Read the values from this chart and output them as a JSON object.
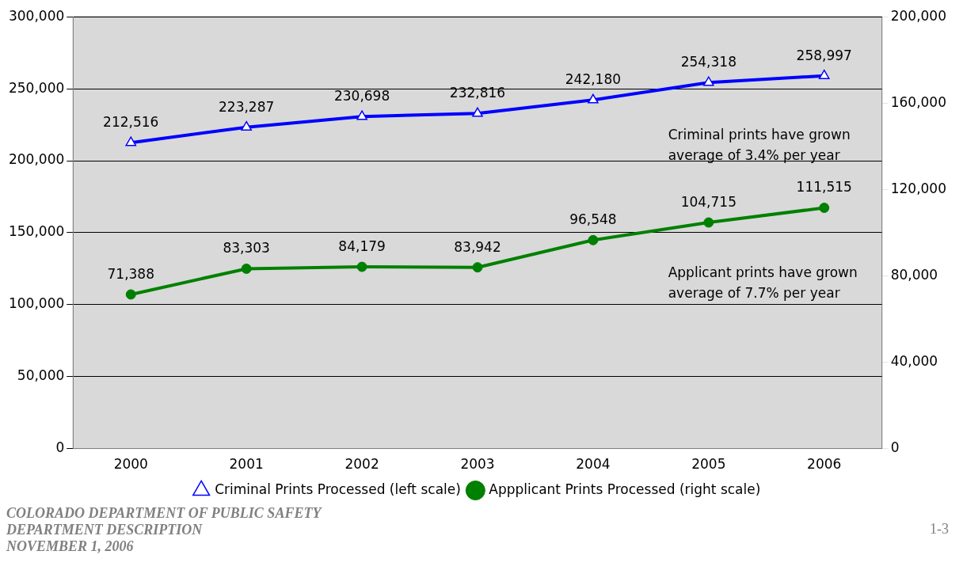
{
  "chart_data": {
    "type": "line",
    "categories": [
      "2000",
      "2001",
      "2002",
      "2003",
      "2004",
      "2005",
      "2006"
    ],
    "series": [
      {
        "name": "Criminal Prints Processed (left scale)",
        "color": "#0000ff",
        "marker": "triangle",
        "values": [
          212516,
          223287,
          230698,
          232816,
          242180,
          254318,
          258997
        ],
        "value_labels": [
          "212,516",
          "223,287",
          "230,698",
          "232,816",
          "242,180",
          "254,318",
          "258,997"
        ]
      },
      {
        "name": "Appplicant Prints Processed (right scale)",
        "color": "#008000",
        "marker": "circle",
        "axis": "y2",
        "values": [
          71388,
          83303,
          84179,
          83942,
          96548,
          104715,
          111515
        ],
        "value_labels": [
          "71,388",
          "83,303",
          "84,179",
          "83,942",
          "96,548",
          "104,715",
          "111,515"
        ]
      }
    ],
    "ylim": [
      0,
      300000
    ],
    "yticks": [
      0,
      {
        "value": 50000,
        "label": "50,000"
      },
      {
        "value": 100000,
        "label": "100,000"
      },
      {
        "value": 150000,
        "label": "150,000"
      },
      {
        "value": 200000,
        "label": "200,000"
      },
      {
        "value": 250000,
        "label": "250,000"
      },
      {
        "value": 300000,
        "label": "300,000"
      }
    ],
    "y2lim": [
      0,
      200000
    ],
    "y2ticks": [
      0,
      {
        "value": 40000,
        "label": "40,000"
      },
      {
        "value": 80000,
        "label": "80,000"
      },
      {
        "value": 120000,
        "label": "120,000"
      },
      {
        "value": 160000,
        "label": "160,000"
      },
      {
        "value": 200000,
        "label": "200,000"
      }
    ],
    "grid": "y",
    "legend": "bottom",
    "annotations": [
      "Criminal prints have grown\naverage of 3.4% per year",
      "Applicant prints have grown\naverage of 7.7% per year",
      "COLORADO DEPARTMENT OF PUBLIC SAFETY",
      "DEPARTMENT DESCRIPTION",
      "NOVEMBER 1, 2006",
      "1-3"
    ]
  }
}
